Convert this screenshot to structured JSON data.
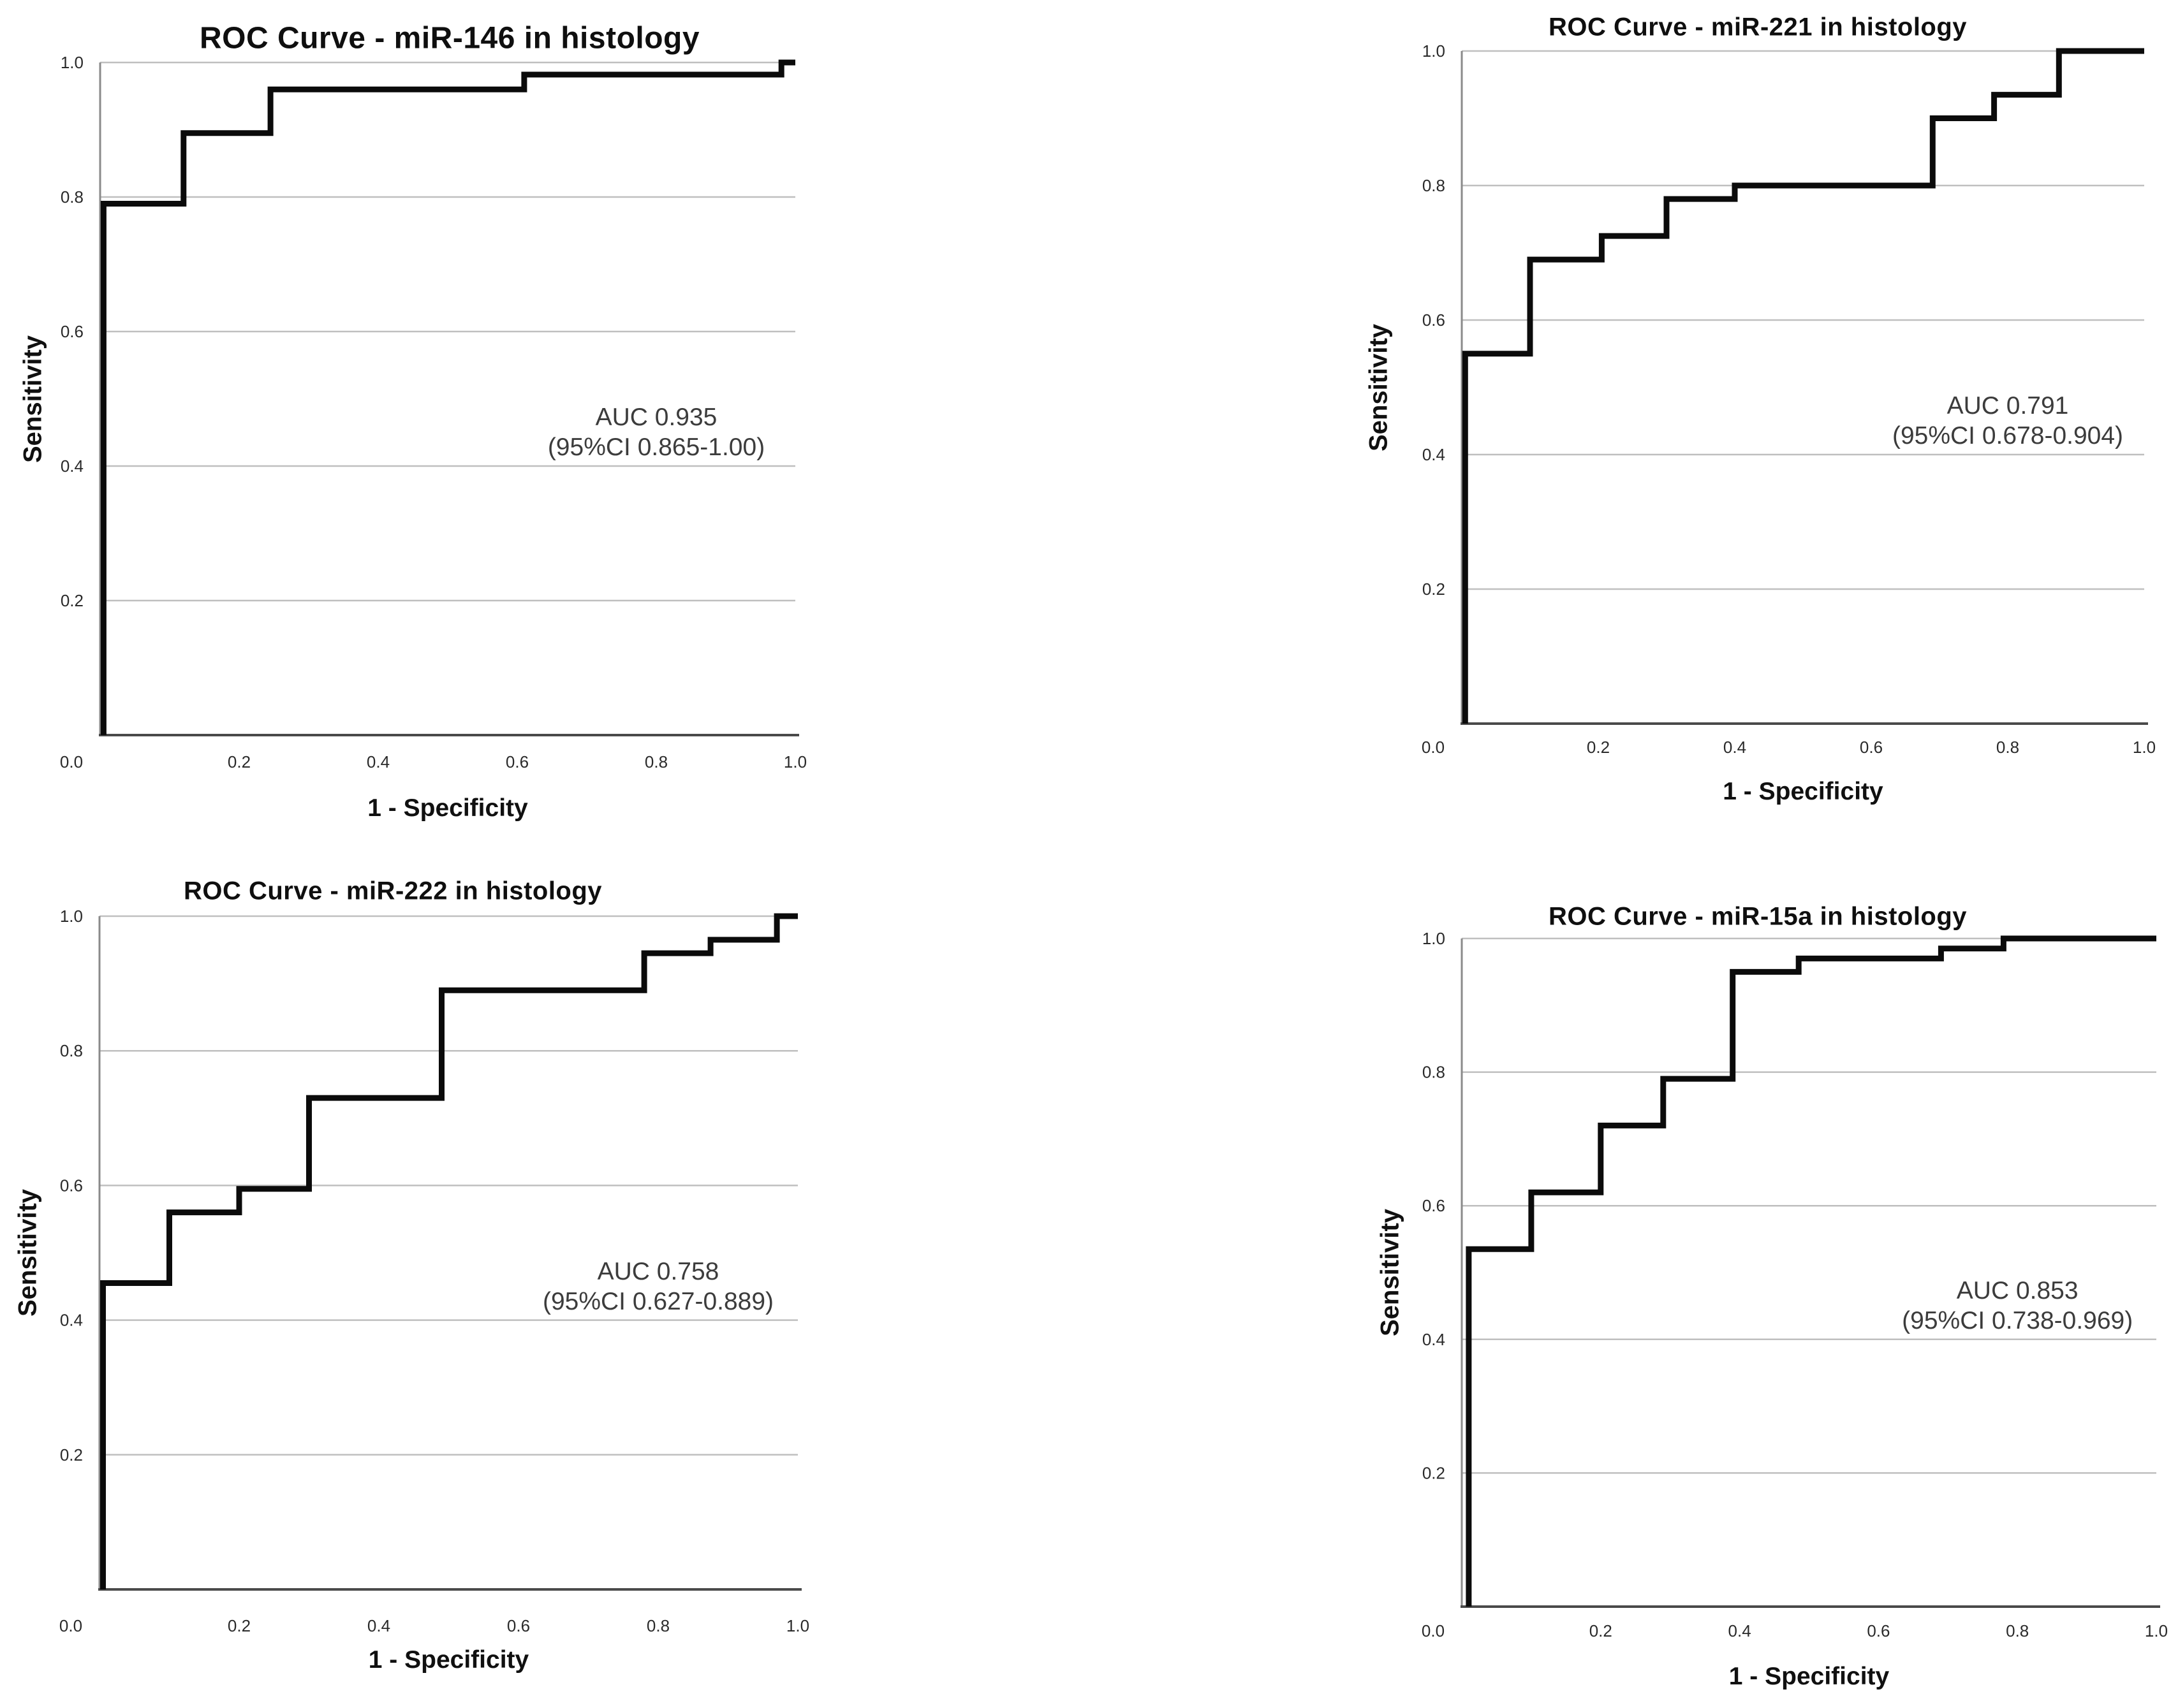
{
  "page": {
    "background": "#ffffff",
    "description": "Four ROC curve panels arranged in a 2x2 grid for miRNA markers evaluated in histology",
    "grid_color": "#bfbfbf",
    "axis_color": "#6a6a6a",
    "text_color": "#101010",
    "annotation_color": "#3c3c3c"
  },
  "chart_data": [
    {
      "type": "line",
      "subtype": "roc_step_curve",
      "title": "ROC Curve - miR-146 in histology",
      "xlabel": "1 - Specificity",
      "ylabel": "Sensitivity",
      "auc": 0.935,
      "ci95": [
        0.865,
        1.0
      ],
      "annotation": {
        "line1": "AUC 0.935",
        "line2": "(95%CI 0.865-1.00)",
        "x": 0.8,
        "y": 0.45
      },
      "x_ticks": [
        "0.0",
        "0.2",
        "0.4",
        "0.6",
        "0.8",
        "1.0"
      ],
      "y_ticks": [
        "0.2",
        "0.4",
        "0.6",
        "0.8",
        "1.0"
      ],
      "xlim": [
        0,
        1
      ],
      "ylim": [
        0,
        1
      ],
      "grid": "horizontal",
      "legend": "none",
      "line_color": "#0b0b0b",
      "series": [
        {
          "name": "ROC",
          "points": [
            [
              0.005,
              0
            ],
            [
              0.005,
              0.79
            ],
            [
              0.12,
              0.79
            ],
            [
              0.12,
              0.895
            ],
            [
              0.245,
              0.895
            ],
            [
              0.245,
              0.96
            ],
            [
              0.61,
              0.96
            ],
            [
              0.61,
              0.982
            ],
            [
              0.98,
              0.982
            ],
            [
              0.98,
              1.0
            ],
            [
              1.0,
              1.0
            ]
          ]
        }
      ]
    },
    {
      "type": "line",
      "subtype": "roc_step_curve",
      "title": "ROC Curve - miR-221 in histology",
      "xlabel": "1 - Specificity",
      "ylabel": "Sensitivity",
      "auc": 0.791,
      "ci95": [
        0.678,
        0.904
      ],
      "annotation": {
        "line1": "AUC 0.791",
        "line2": "(95%CI 0.678-0.904)",
        "x": 0.8,
        "y": 0.45
      },
      "x_ticks": [
        "0.0",
        "0.2",
        "0.4",
        "0.6",
        "0.8",
        "1.0"
      ],
      "y_ticks": [
        "0.2",
        "0.4",
        "0.6",
        "0.8",
        "1.0"
      ],
      "xlim": [
        0,
        1
      ],
      "ylim": [
        0,
        1
      ],
      "grid": "horizontal",
      "legend": "none",
      "line_color": "#0b0b0b",
      "series": [
        {
          "name": "ROC",
          "points": [
            [
              0.005,
              0
            ],
            [
              0.005,
              0.55
            ],
            [
              0.1,
              0.55
            ],
            [
              0.1,
              0.69
            ],
            [
              0.205,
              0.69
            ],
            [
              0.205,
              0.725
            ],
            [
              0.3,
              0.725
            ],
            [
              0.3,
              0.78
            ],
            [
              0.4,
              0.78
            ],
            [
              0.4,
              0.8
            ],
            [
              0.69,
              0.8
            ],
            [
              0.69,
              0.9
            ],
            [
              0.78,
              0.9
            ],
            [
              0.78,
              0.935
            ],
            [
              0.875,
              0.935
            ],
            [
              0.875,
              1.0
            ],
            [
              1.0,
              1.0
            ]
          ]
        }
      ]
    },
    {
      "type": "line",
      "subtype": "roc_step_curve",
      "title": "ROC Curve - miR-222 in histology",
      "xlabel": "1 - Specificity",
      "ylabel": "Sensitivity",
      "auc": 0.758,
      "ci95": [
        0.627,
        0.889
      ],
      "annotation": {
        "line1": "AUC 0.758",
        "line2": "(95%CI 0.627-0.889)",
        "x": 0.8,
        "y": 0.45
      },
      "x_ticks": [
        "0.0",
        "0.2",
        "0.4",
        "0.6",
        "0.8",
        "1.0"
      ],
      "y_ticks": [
        "0.2",
        "0.4",
        "0.6",
        "0.8",
        "1.0"
      ],
      "xlim": [
        0,
        1
      ],
      "ylim": [
        0,
        1
      ],
      "grid": "horizontal",
      "legend": "none",
      "line_color": "#0b0b0b",
      "series": [
        {
          "name": "ROC",
          "points": [
            [
              0.005,
              0
            ],
            [
              0.005,
              0.455
            ],
            [
              0.1,
              0.455
            ],
            [
              0.1,
              0.56
            ],
            [
              0.2,
              0.56
            ],
            [
              0.2,
              0.595
            ],
            [
              0.3,
              0.595
            ],
            [
              0.3,
              0.73
            ],
            [
              0.49,
              0.73
            ],
            [
              0.49,
              0.89
            ],
            [
              0.78,
              0.89
            ],
            [
              0.78,
              0.945
            ],
            [
              0.875,
              0.945
            ],
            [
              0.875,
              0.965
            ],
            [
              0.97,
              0.965
            ],
            [
              0.97,
              1.0
            ],
            [
              1.0,
              1.0
            ]
          ]
        }
      ]
    },
    {
      "type": "line",
      "subtype": "roc_step_curve",
      "title": "ROC Curve - miR-15a in histology",
      "xlabel": "1 - Specificity",
      "ylabel": "Sensitivity",
      "auc": 0.853,
      "ci95": [
        0.738,
        0.969
      ],
      "annotation": {
        "line1": "AUC 0.853",
        "line2": "(95%CI 0.738-0.969)",
        "x": 0.8,
        "y": 0.45
      },
      "x_ticks": [
        "0.0",
        "0.2",
        "0.4",
        "0.6",
        "0.8",
        "1.0"
      ],
      "y_ticks": [
        "0.2",
        "0.4",
        "0.6",
        "0.8",
        "1.0"
      ],
      "xlim": [
        0,
        1
      ],
      "ylim": [
        0,
        1
      ],
      "grid": "horizontal",
      "legend": "none",
      "line_color": "#0b0b0b",
      "series": [
        {
          "name": "ROC",
          "points": [
            [
              0.01,
              0
            ],
            [
              0.01,
              0.535
            ],
            [
              0.1,
              0.535
            ],
            [
              0.1,
              0.62
            ],
            [
              0.2,
              0.62
            ],
            [
              0.2,
              0.72
            ],
            [
              0.29,
              0.72
            ],
            [
              0.29,
              0.79
            ],
            [
              0.39,
              0.79
            ],
            [
              0.39,
              0.95
            ],
            [
              0.485,
              0.95
            ],
            [
              0.485,
              0.97
            ],
            [
              0.69,
              0.97
            ],
            [
              0.69,
              0.985
            ],
            [
              0.78,
              0.985
            ],
            [
              0.78,
              1.0
            ],
            [
              1.0,
              1.0
            ]
          ]
        }
      ]
    }
  ]
}
